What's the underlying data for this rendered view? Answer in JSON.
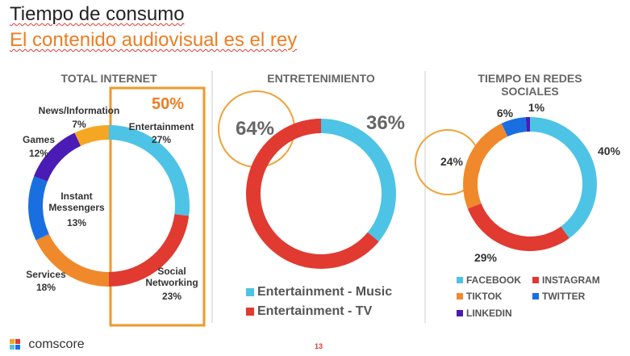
{
  "title": "Tiempo de consumo",
  "subtitle": "El contenido audiovisual es el rey",
  "logo": "comscore",
  "page_number": "13",
  "chart_data": [
    {
      "type": "donut",
      "title": "TOTAL INTERNET",
      "categories": [
        "Entertainment",
        "Social Networking",
        "Services",
        "Instant Messengers",
        "Games",
        "News/Information"
      ],
      "values": [
        27,
        23,
        18,
        13,
        12,
        7
      ],
      "value_labels": [
        "27%",
        "23%",
        "18%",
        "13%",
        "12%",
        "7%"
      ],
      "colors": [
        "#4dc3e6",
        "#e03a31",
        "#f0892b",
        "#1a6fe0",
        "#4a1bb5",
        "#f5a623"
      ],
      "annotation": "50%"
    },
    {
      "type": "donut",
      "title": "ENTRETENIMIENTO",
      "categories": [
        "Entertainment - Music",
        "Entertainment - TV"
      ],
      "values": [
        36,
        64
      ],
      "value_labels": [
        "36%",
        "64%"
      ],
      "colors": [
        "#4dc3e6",
        "#e03a31"
      ]
    },
    {
      "type": "donut",
      "title": "TIEMPO EN REDES SOCIALES",
      "categories": [
        "FACEBOOK",
        "INSTAGRAM",
        "TIKTOK",
        "TWITTER",
        "LINKEDIN"
      ],
      "values": [
        40,
        29,
        24,
        6,
        1
      ],
      "value_labels": [
        "40%",
        "29%",
        "24%",
        "6%",
        "1%"
      ],
      "colors": [
        "#4dc3e6",
        "#e03a31",
        "#f0892b",
        "#1a6fe0",
        "#4a1bb5"
      ]
    }
  ]
}
